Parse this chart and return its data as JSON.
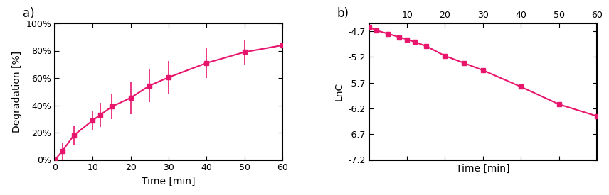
{
  "color": "#E8156D",
  "plot_a": {
    "label": "a)",
    "xlabel": "Time [min]",
    "ylabel": "Degradation [%]",
    "xlim": [
      0,
      60
    ],
    "ylim": [
      0,
      1.0
    ],
    "yticks": [
      0.0,
      0.2,
      0.4,
      0.6,
      0.8,
      1.0
    ],
    "ytick_labels": [
      "0%",
      "20%",
      "40%",
      "60%",
      "80%",
      "100%"
    ],
    "xticks": [
      0,
      10,
      20,
      30,
      40,
      50,
      60
    ],
    "x_data": [
      0,
      2,
      5,
      10,
      12,
      15,
      20,
      25,
      30,
      40,
      50,
      60
    ],
    "y_data": [
      0.0,
      0.065,
      0.18,
      0.29,
      0.33,
      0.39,
      0.455,
      0.545,
      0.605,
      0.71,
      0.79,
      0.84
    ],
    "y_err": [
      0.0,
      0.06,
      0.07,
      0.07,
      0.09,
      0.09,
      0.12,
      0.12,
      0.12,
      0.11,
      0.09,
      0.09
    ]
  },
  "plot_b": {
    "label": "b)",
    "xlabel": "Time [min]",
    "ylabel": "LnC",
    "xlim": [
      0,
      60
    ],
    "ylim": [
      -7.2,
      -4.55
    ],
    "yticks": [
      -7.2,
      -6.7,
      -6.2,
      -5.7,
      -5.2,
      -4.7
    ],
    "ytick_labels": [
      "-7.2",
      "-6.7",
      "-6.2",
      "-5.7",
      "-5.2",
      "-4.7"
    ],
    "xticks": [
      10,
      20,
      30,
      40,
      50,
      60
    ],
    "x_data": [
      0,
      2,
      5,
      8,
      10,
      12,
      15,
      20,
      25,
      30,
      40,
      50,
      60
    ],
    "y_data": [
      -4.62,
      -4.69,
      -4.75,
      -4.82,
      -4.86,
      -4.91,
      -4.99,
      -5.18,
      -5.32,
      -5.46,
      -5.78,
      -6.12,
      -6.35
    ]
  }
}
